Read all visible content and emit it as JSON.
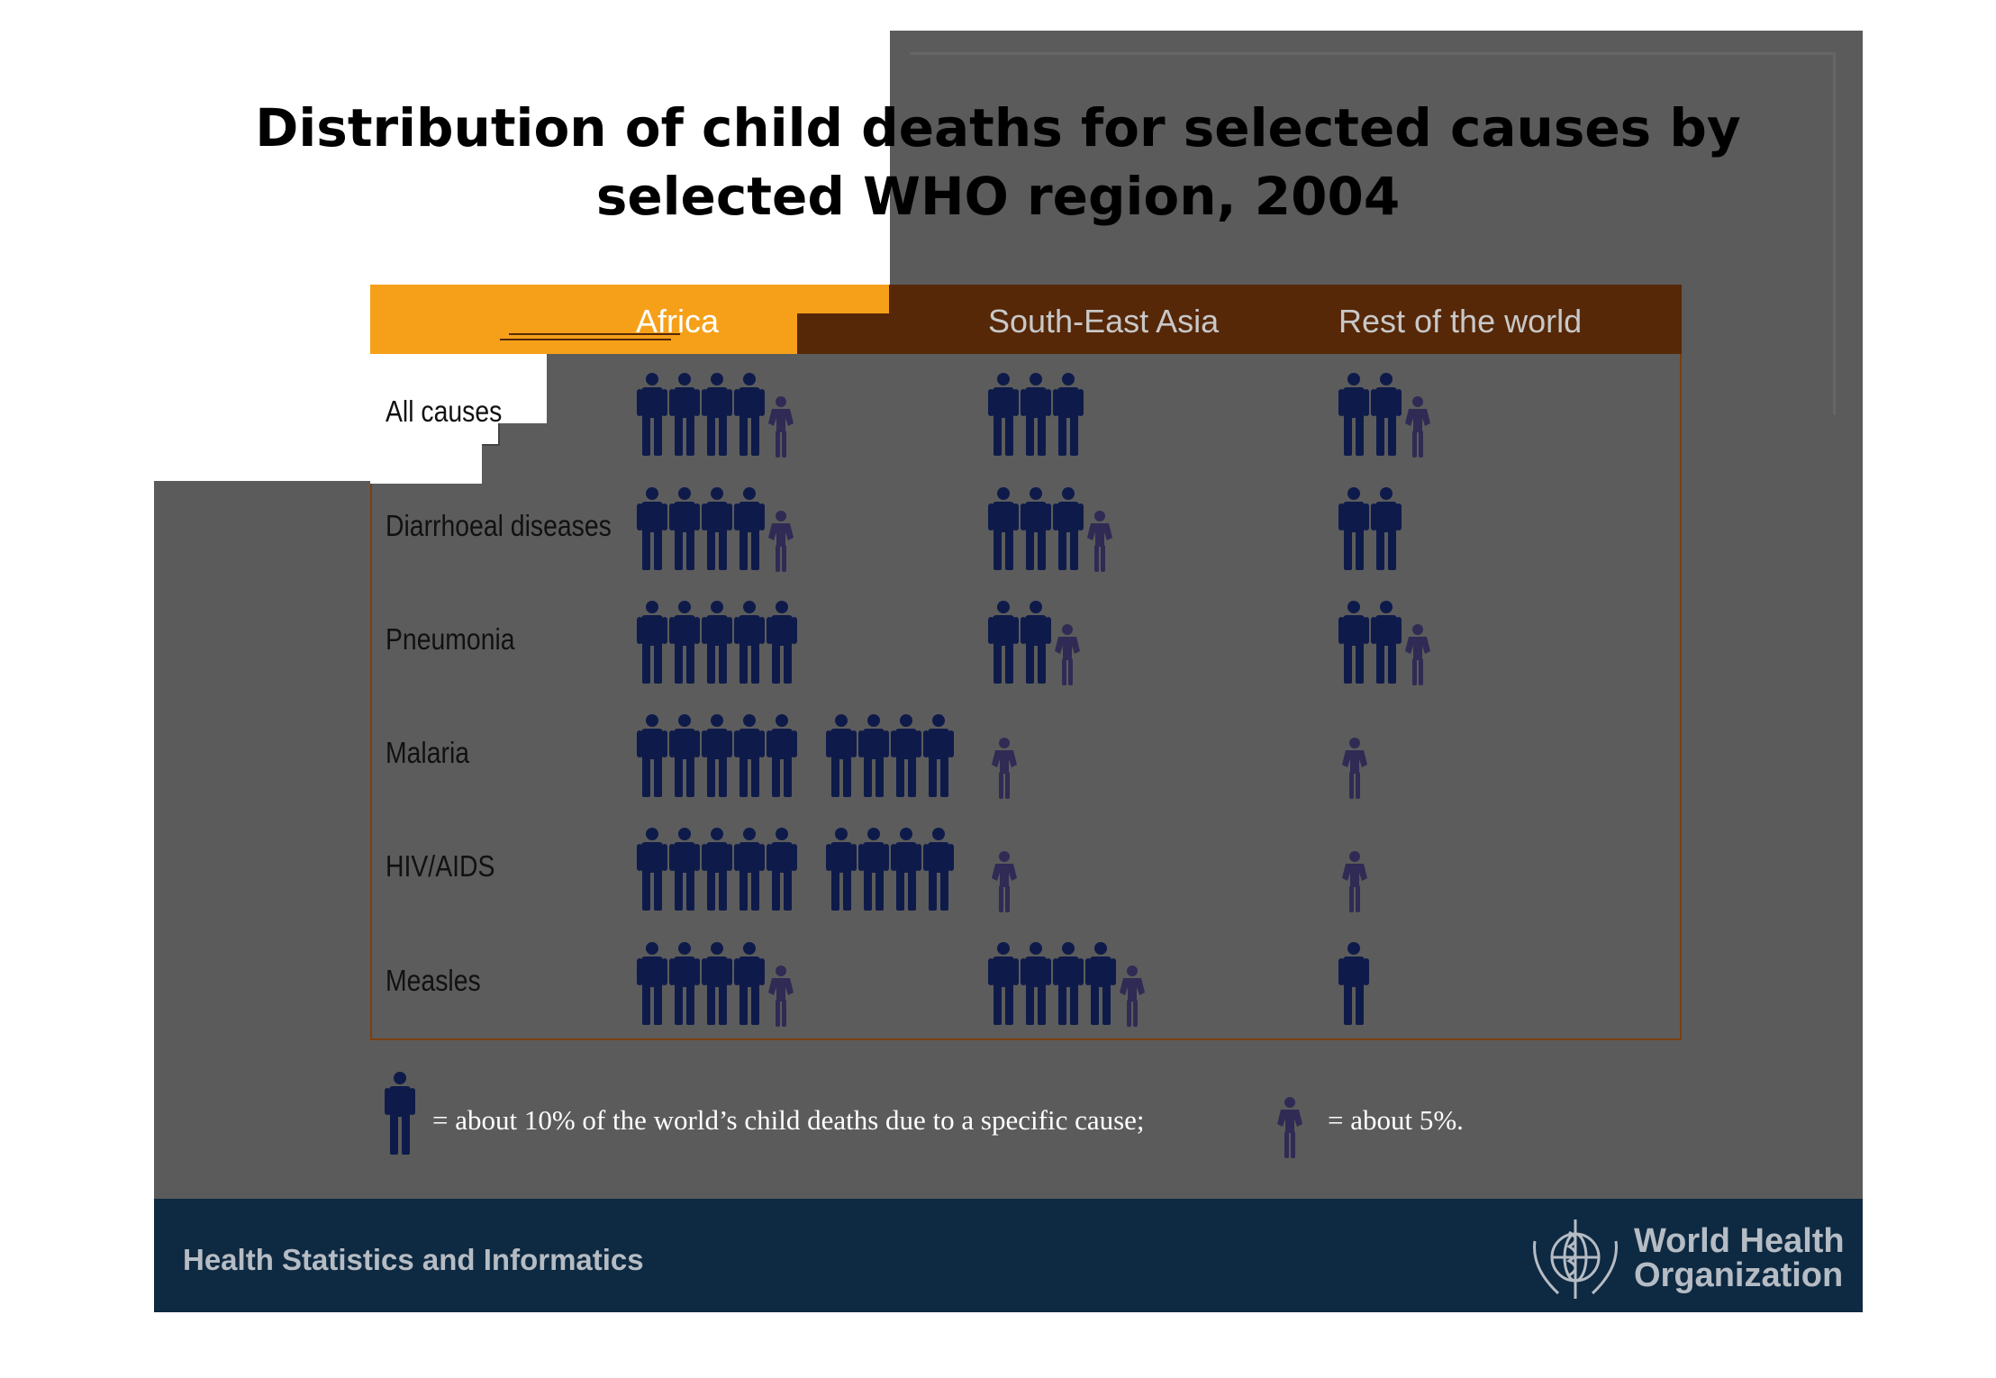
{
  "title_line1": "Distribution of child deaths for selected causes by",
  "title_line2": "selected WHO region, 2004",
  "legend": {
    "full_text": "= about 10% of the world’s child deaths due to a specific cause;",
    "half_text": "= about 5%."
  },
  "footer": {
    "program": "Health Statistics and Informatics",
    "org_line1": "World Health",
    "org_line2": "Organization",
    "emblem_icon": "who-emblem-icon"
  },
  "colors": {
    "full_icon": "#0e1b4a",
    "half_icon": "#2f2b55",
    "header_accent": "#f6a01a",
    "header_bar": "#562808",
    "footer_bar": "#0e2a42"
  },
  "chart_data": {
    "type": "pictogram",
    "unit_full": "about 10% of the world's child deaths",
    "unit_half": "about 5%",
    "regions": [
      "Africa",
      "South-East Asia",
      "Rest of the world"
    ],
    "causes": [
      "All causes",
      "Diarrhoeal diseases",
      "Pneumonia",
      "Malaria",
      "HIV/AIDS",
      "Measles"
    ],
    "series": [
      {
        "name": "Africa",
        "values": [
          45,
          45,
          50,
          90,
          90,
          45
        ]
      },
      {
        "name": "South-East Asia",
        "values": [
          30,
          35,
          25,
          5,
          5,
          45
        ]
      },
      {
        "name": "Rest of the world",
        "values": [
          25,
          20,
          25,
          5,
          5,
          10
        ]
      }
    ]
  }
}
